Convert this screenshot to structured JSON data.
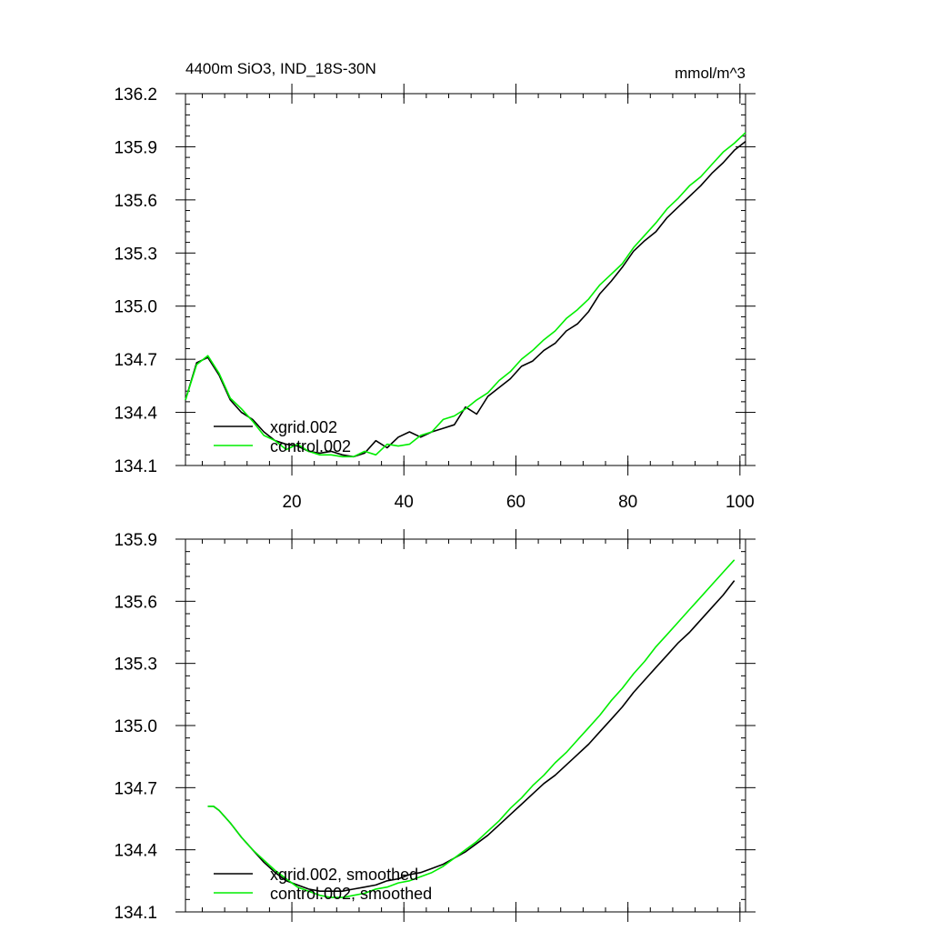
{
  "chart_data": [
    {
      "type": "line",
      "title": "4400m SiO3, IND_18S-30N",
      "units": "mmol/m^3",
      "xlabel": "",
      "ylabel": "",
      "xlim": [
        1,
        101
      ],
      "ylim": [
        134.1,
        136.2
      ],
      "x_ticks": [
        20,
        40,
        60,
        80,
        100
      ],
      "x_tick_labels": [
        "20",
        "40",
        "60",
        "80",
        "100"
      ],
      "y_ticks": [
        134.1,
        134.4,
        134.7,
        135.0,
        135.3,
        135.6,
        135.9,
        136.2
      ],
      "y_tick_labels": [
        "134.1",
        "134.4",
        "134.7",
        "135.0",
        "135.3",
        "135.6",
        "135.9",
        "136.2"
      ],
      "legend_position": "bottom-left",
      "series": [
        {
          "name": "xgrid.002",
          "color": "#000000",
          "x": [
            1,
            3,
            5,
            7,
            9,
            11,
            13,
            15,
            17,
            19,
            21,
            23,
            25,
            27,
            29,
            31,
            33,
            35,
            37,
            39,
            41,
            43,
            45,
            47,
            49,
            51,
            53,
            55,
            57,
            59,
            61,
            63,
            65,
            67,
            69,
            71,
            73,
            75,
            77,
            79,
            81,
            83,
            85,
            87,
            89,
            91,
            93,
            95,
            97,
            99,
            101
          ],
          "values": [
            134.47,
            134.68,
            134.71,
            134.61,
            134.47,
            134.4,
            134.36,
            134.29,
            134.24,
            134.22,
            134.21,
            134.18,
            134.17,
            134.18,
            134.16,
            134.15,
            134.17,
            134.24,
            134.2,
            134.26,
            134.29,
            134.26,
            134.29,
            134.31,
            134.33,
            134.43,
            134.39,
            134.49,
            134.54,
            134.59,
            134.66,
            134.69,
            134.75,
            134.79,
            134.86,
            134.9,
            134.97,
            135.07,
            135.14,
            135.22,
            135.31,
            135.37,
            135.42,
            135.5,
            135.56,
            135.62,
            135.68,
            135.75,
            135.81,
            135.88,
            135.93
          ]
        },
        {
          "name": "control.002",
          "color": "#00ee00",
          "x": [
            1,
            3,
            5,
            7,
            9,
            11,
            13,
            15,
            17,
            19,
            21,
            23,
            25,
            27,
            29,
            31,
            33,
            35,
            37,
            39,
            41,
            43,
            45,
            47,
            49,
            51,
            53,
            55,
            57,
            59,
            61,
            63,
            65,
            67,
            69,
            71,
            73,
            75,
            77,
            79,
            81,
            83,
            85,
            87,
            89,
            91,
            93,
            95,
            97,
            99,
            101
          ],
          "values": [
            134.47,
            134.67,
            134.72,
            134.62,
            134.48,
            134.42,
            134.35,
            134.27,
            134.24,
            134.19,
            134.22,
            134.18,
            134.16,
            134.16,
            134.15,
            134.15,
            134.18,
            134.16,
            134.22,
            134.21,
            134.22,
            134.27,
            134.29,
            134.36,
            134.38,
            134.42,
            134.47,
            134.51,
            134.58,
            134.63,
            134.7,
            134.75,
            134.81,
            134.86,
            134.93,
            134.98,
            135.04,
            135.12,
            135.18,
            135.24,
            135.33,
            135.4,
            135.47,
            135.55,
            135.61,
            135.68,
            135.73,
            135.8,
            135.87,
            135.92,
            135.98
          ]
        }
      ]
    },
    {
      "type": "line",
      "title": "",
      "xlabel": "",
      "ylabel": "",
      "xlim": [
        1,
        101
      ],
      "ylim": [
        134.1,
        135.9
      ],
      "x_ticks": [
        20,
        40,
        60,
        80,
        100
      ],
      "x_tick_labels": [],
      "y_ticks": [
        134.1,
        134.4,
        134.7,
        135.0,
        135.3,
        135.6,
        135.9
      ],
      "y_tick_labels": [
        "134.1",
        "134.4",
        "134.7",
        "135.0",
        "135.3",
        "135.6",
        "135.9"
      ],
      "legend_position": "bottom-left",
      "series": [
        {
          "name": "xgrid.002, smoothed",
          "color": "#000000",
          "x": [
            5,
            6,
            7,
            9,
            11,
            13,
            15,
            17,
            19,
            21,
            23,
            25,
            27,
            29,
            31,
            33,
            35,
            37,
            39,
            41,
            43,
            45,
            47,
            49,
            51,
            53,
            55,
            57,
            59,
            61,
            63,
            65,
            67,
            69,
            71,
            73,
            75,
            77,
            79,
            81,
            83,
            85,
            87,
            89,
            91,
            93,
            95,
            97,
            99
          ],
          "values": [
            134.61,
            134.61,
            134.59,
            134.53,
            134.46,
            134.4,
            134.34,
            134.29,
            134.25,
            134.23,
            134.21,
            134.2,
            134.2,
            134.2,
            134.21,
            134.22,
            134.23,
            134.25,
            134.26,
            134.28,
            134.29,
            134.31,
            134.33,
            134.36,
            134.39,
            134.43,
            134.47,
            134.52,
            134.57,
            134.62,
            134.67,
            134.72,
            134.76,
            134.81,
            134.86,
            134.91,
            134.97,
            135.03,
            135.09,
            135.16,
            135.22,
            135.28,
            135.34,
            135.4,
            135.45,
            135.51,
            135.57,
            135.63,
            135.7
          ]
        },
        {
          "name": "control.002, smoothed",
          "color": "#00ee00",
          "x": [
            5,
            6,
            7,
            9,
            11,
            13,
            15,
            17,
            19,
            21,
            23,
            25,
            27,
            29,
            31,
            33,
            35,
            37,
            39,
            41,
            43,
            45,
            47,
            49,
            51,
            53,
            55,
            57,
            59,
            61,
            63,
            65,
            67,
            69,
            71,
            73,
            75,
            77,
            79,
            81,
            83,
            85,
            87,
            89,
            91,
            93,
            95,
            97,
            99
          ],
          "values": [
            134.61,
            134.61,
            134.59,
            134.53,
            134.46,
            134.4,
            134.35,
            134.3,
            134.26,
            134.22,
            134.2,
            134.18,
            134.17,
            134.17,
            134.18,
            134.19,
            134.21,
            134.22,
            134.24,
            134.25,
            134.27,
            134.29,
            134.32,
            134.36,
            134.4,
            134.44,
            134.49,
            134.54,
            134.6,
            134.65,
            134.71,
            134.76,
            134.82,
            134.87,
            134.93,
            134.99,
            135.05,
            135.12,
            135.18,
            135.25,
            135.31,
            135.38,
            135.44,
            135.5,
            135.56,
            135.62,
            135.68,
            135.74,
            135.8
          ]
        }
      ]
    }
  ]
}
